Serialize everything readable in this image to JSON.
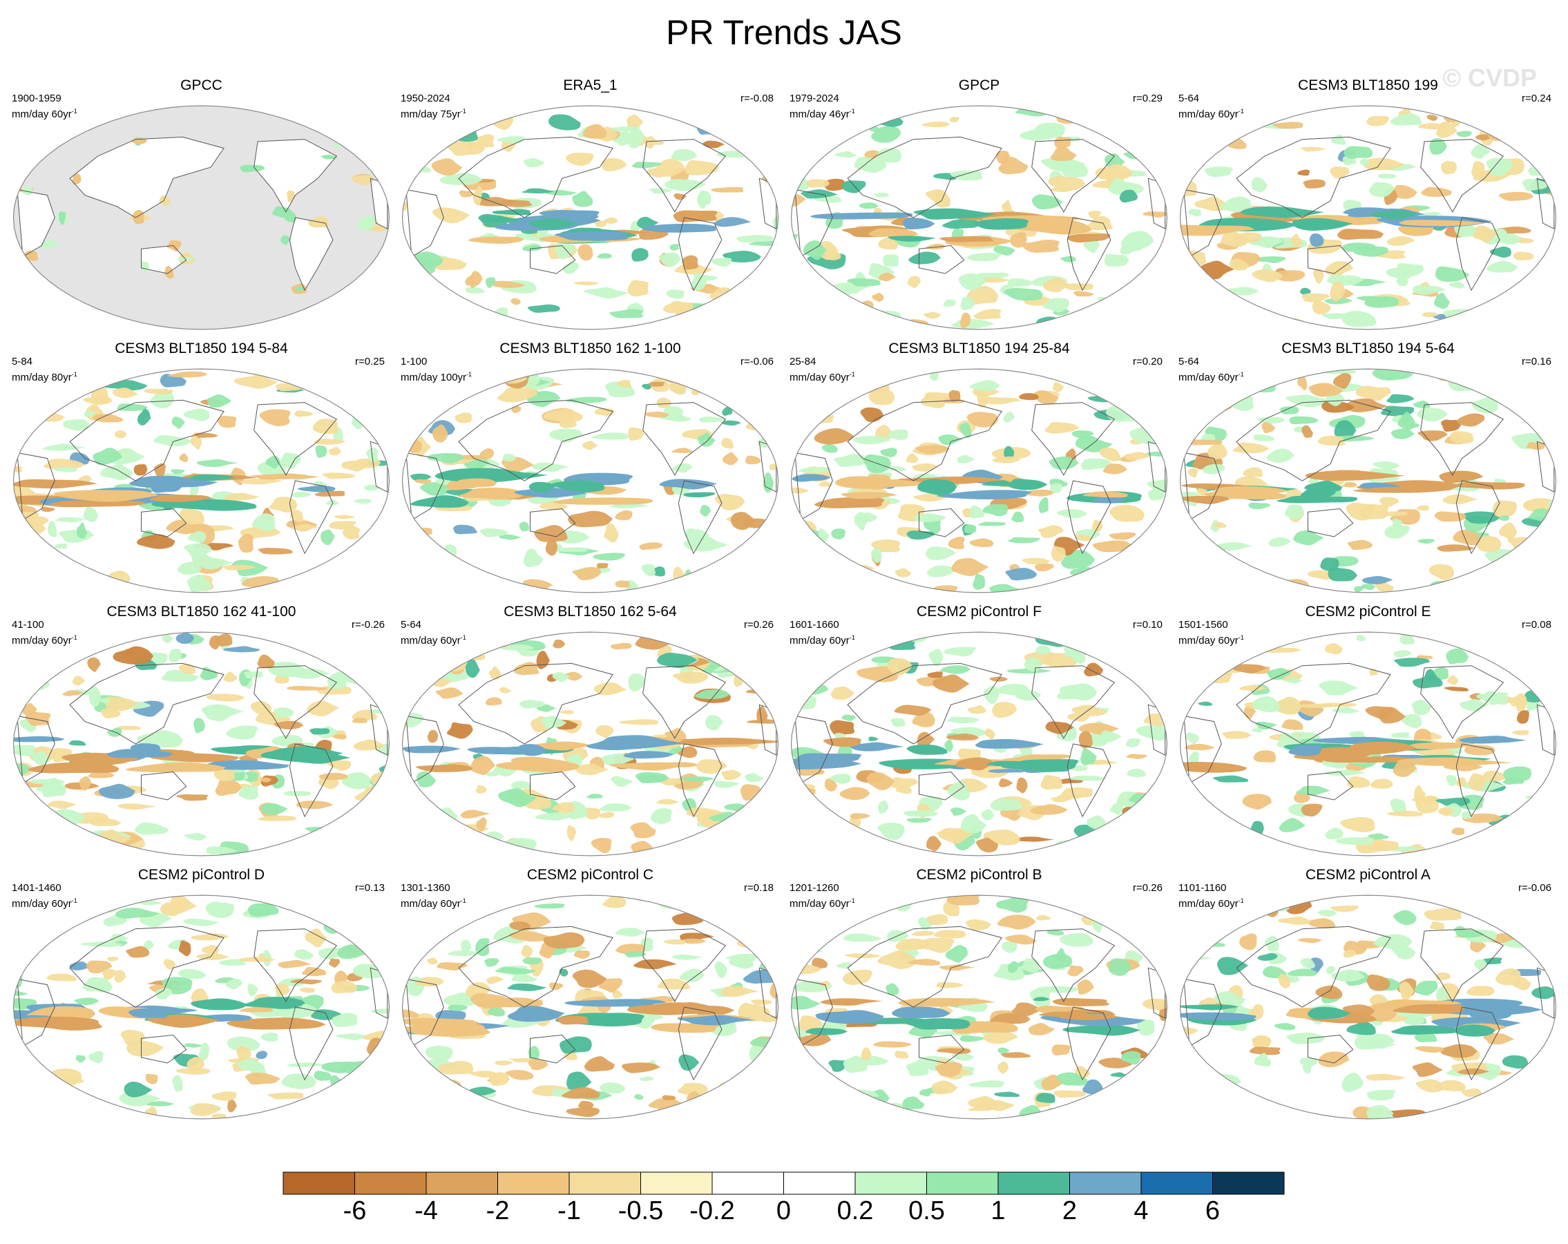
{
  "title": "PR Trends JAS",
  "watermark": "© CVDP",
  "panels": [
    {
      "title": "GPCC",
      "period": "1900-1959",
      "units": "mm/day 60yr",
      "corr": "",
      "grey": true,
      "seed": 3
    },
    {
      "title": "ERA5_1",
      "period": "1950-2024",
      "units": "mm/day 75yr",
      "corr": "r=-0.08",
      "grey": false,
      "seed": 7
    },
    {
      "title": "GPCP",
      "period": "1979-2024",
      "units": "mm/day 46yr",
      "corr": "r=0.29",
      "grey": false,
      "seed": 11
    },
    {
      "title": "CESM3 BLT1850 199",
      "period": "5-64",
      "units": "mm/day 60yr",
      "corr": "r=0.24",
      "grey": false,
      "seed": 13
    },
    {
      "title": "CESM3 BLT1850 194 5-84",
      "period": "5-84",
      "units": "mm/day 80yr",
      "corr": "r=0.25",
      "grey": false,
      "seed": 17
    },
    {
      "title": "CESM3 BLT1850 162 1-100",
      "period": "1-100",
      "units": "mm/day 100yr",
      "corr": "r=-0.06",
      "grey": false,
      "seed": 19
    },
    {
      "title": "CESM3 BLT1850 194 25-84",
      "period": "25-84",
      "units": "mm/day 60yr",
      "corr": "r=0.20",
      "grey": false,
      "seed": 23
    },
    {
      "title": "CESM3 BLT1850 194 5-64",
      "period": "5-64",
      "units": "mm/day 60yr",
      "corr": "r=0.16",
      "grey": false,
      "seed": 29
    },
    {
      "title": "CESM3 BLT1850 162 41-100",
      "period": "41-100",
      "units": "mm/day 60yr",
      "corr": "r=-0.26",
      "grey": false,
      "seed": 31
    },
    {
      "title": "CESM3 BLT1850 162 5-64",
      "period": "5-64",
      "units": "mm/day 60yr",
      "corr": "r=0.26",
      "grey": false,
      "seed": 37
    },
    {
      "title": "CESM2 piControl F",
      "period": "1601-1660",
      "units": "mm/day 60yr",
      "corr": "r=0.10",
      "grey": false,
      "seed": 41
    },
    {
      "title": "CESM2 piControl E",
      "period": "1501-1560",
      "units": "mm/day 60yr",
      "corr": "r=0.08",
      "grey": false,
      "seed": 43
    },
    {
      "title": "CESM2 piControl D",
      "period": "1401-1460",
      "units": "mm/day 60yr",
      "corr": "r=0.13",
      "grey": false,
      "seed": 47
    },
    {
      "title": "CESM2 piControl C",
      "period": "1301-1360",
      "units": "mm/day 60yr",
      "corr": "r=0.18",
      "grey": false,
      "seed": 53
    },
    {
      "title": "CESM2 piControl B",
      "period": "1201-1260",
      "units": "mm/day 60yr",
      "corr": "r=0.26",
      "grey": false,
      "seed": 59
    },
    {
      "title": "CESM2 piControl A",
      "period": "1101-1160",
      "units": "mm/day 60yr",
      "corr": "r=-0.06",
      "grey": false,
      "seed": 61
    }
  ],
  "colorbar": {
    "labels": [
      "-6",
      "-4",
      "-2",
      "-1",
      "-0.5",
      "-0.2",
      "0",
      "0.2",
      "0.5",
      "1",
      "2",
      "4",
      "6"
    ],
    "colors": [
      "#b5682a",
      "#cb8540",
      "#dca25e",
      "#efc47f",
      "#f4dd9c",
      "#fbf3c4",
      "#ffffff",
      "#ffffff",
      "#c6f7c9",
      "#97e8ad",
      "#4cba98",
      "#6fa7c9",
      "#1a6eae",
      "#0b3857"
    ]
  },
  "chart_data": {
    "type": "heatmap",
    "title": "PR Trends JAS",
    "variable": "precipitation trend",
    "units": "mm/day per period",
    "projection": "Robinson (Pacific-centred)",
    "contour_levels": [
      -6,
      -4,
      -2,
      -1,
      -0.5,
      -0.2,
      0,
      0.2,
      0.5,
      1,
      2,
      4,
      6
    ],
    "panels": [
      {
        "name": "GPCC",
        "period": "1900-1959",
        "trend_length": "60yr"
      },
      {
        "name": "ERA5_1",
        "period": "1950-2024",
        "trend_length": "75yr",
        "r": -0.08
      },
      {
        "name": "GPCP",
        "period": "1979-2024",
        "trend_length": "46yr",
        "r": 0.29
      },
      {
        "name": "CESM3 BLT1850 199",
        "period": "5-64",
        "trend_length": "60yr",
        "r": 0.24
      },
      {
        "name": "CESM3 BLT1850 194 5-84",
        "period": "5-84",
        "trend_length": "80yr",
        "r": 0.25
      },
      {
        "name": "CESM3 BLT1850 162 1-100",
        "period": "1-100",
        "trend_length": "100yr",
        "r": -0.06
      },
      {
        "name": "CESM3 BLT1850 194 25-84",
        "period": "25-84",
        "trend_length": "60yr",
        "r": 0.2
      },
      {
        "name": "CESM3 BLT1850 194 5-64",
        "period": "5-64",
        "trend_length": "60yr",
        "r": 0.16
      },
      {
        "name": "CESM3 BLT1850 162 41-100",
        "period": "41-100",
        "trend_length": "60yr",
        "r": -0.26
      },
      {
        "name": "CESM3 BLT1850 162 5-64",
        "period": "5-64",
        "trend_length": "60yr",
        "r": 0.26
      },
      {
        "name": "CESM2 piControl F",
        "period": "1601-1660",
        "trend_length": "60yr",
        "r": 0.1
      },
      {
        "name": "CESM2 piControl E",
        "period": "1501-1560",
        "trend_length": "60yr",
        "r": 0.08
      },
      {
        "name": "CESM2 piControl D",
        "period": "1401-1460",
        "trend_length": "60yr",
        "r": 0.13
      },
      {
        "name": "CESM2 piControl C",
        "period": "1301-1360",
        "trend_length": "60yr",
        "r": 0.18
      },
      {
        "name": "CESM2 piControl B",
        "period": "1201-1260",
        "trend_length": "60yr",
        "r": 0.26
      },
      {
        "name": "CESM2 piControl A",
        "period": "1101-1160",
        "trend_length": "60yr",
        "r": -0.06
      }
    ]
  }
}
